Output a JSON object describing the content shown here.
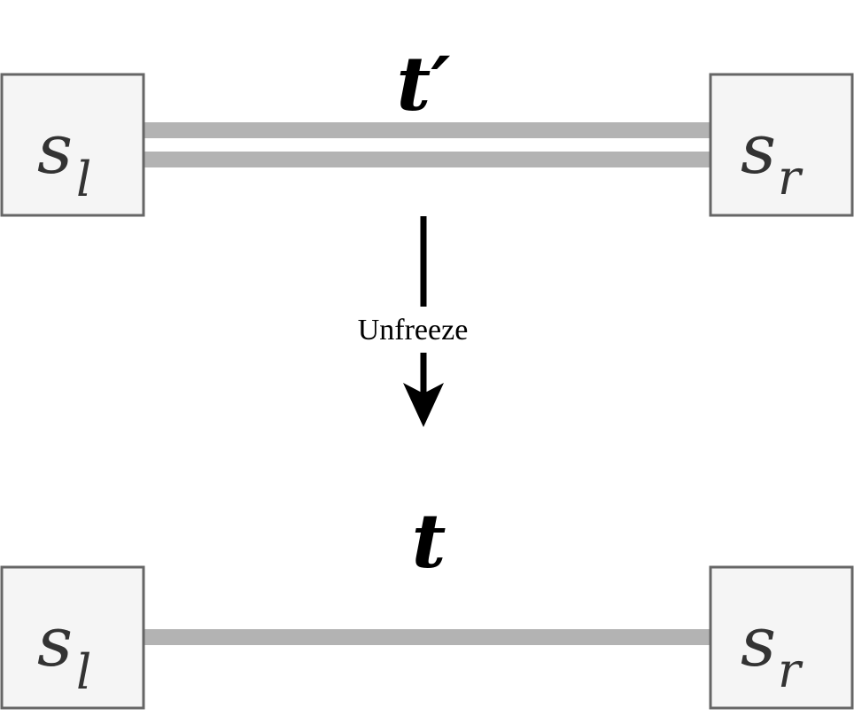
{
  "before": {
    "left_node": {
      "main": "s",
      "sub": "l"
    },
    "right_node": {
      "main": "s",
      "sub": "r"
    },
    "edge_label": "t′"
  },
  "transition": {
    "label": "Unfreeze"
  },
  "after": {
    "left_node": {
      "main": "s",
      "sub": "l"
    },
    "right_node": {
      "main": "s",
      "sub": "r"
    },
    "edge_label": "t"
  },
  "colors": {
    "node_fill": "#f5f5f5",
    "node_stroke": "#666666",
    "edge": "#b3b3b3",
    "arrow": "#000000"
  }
}
